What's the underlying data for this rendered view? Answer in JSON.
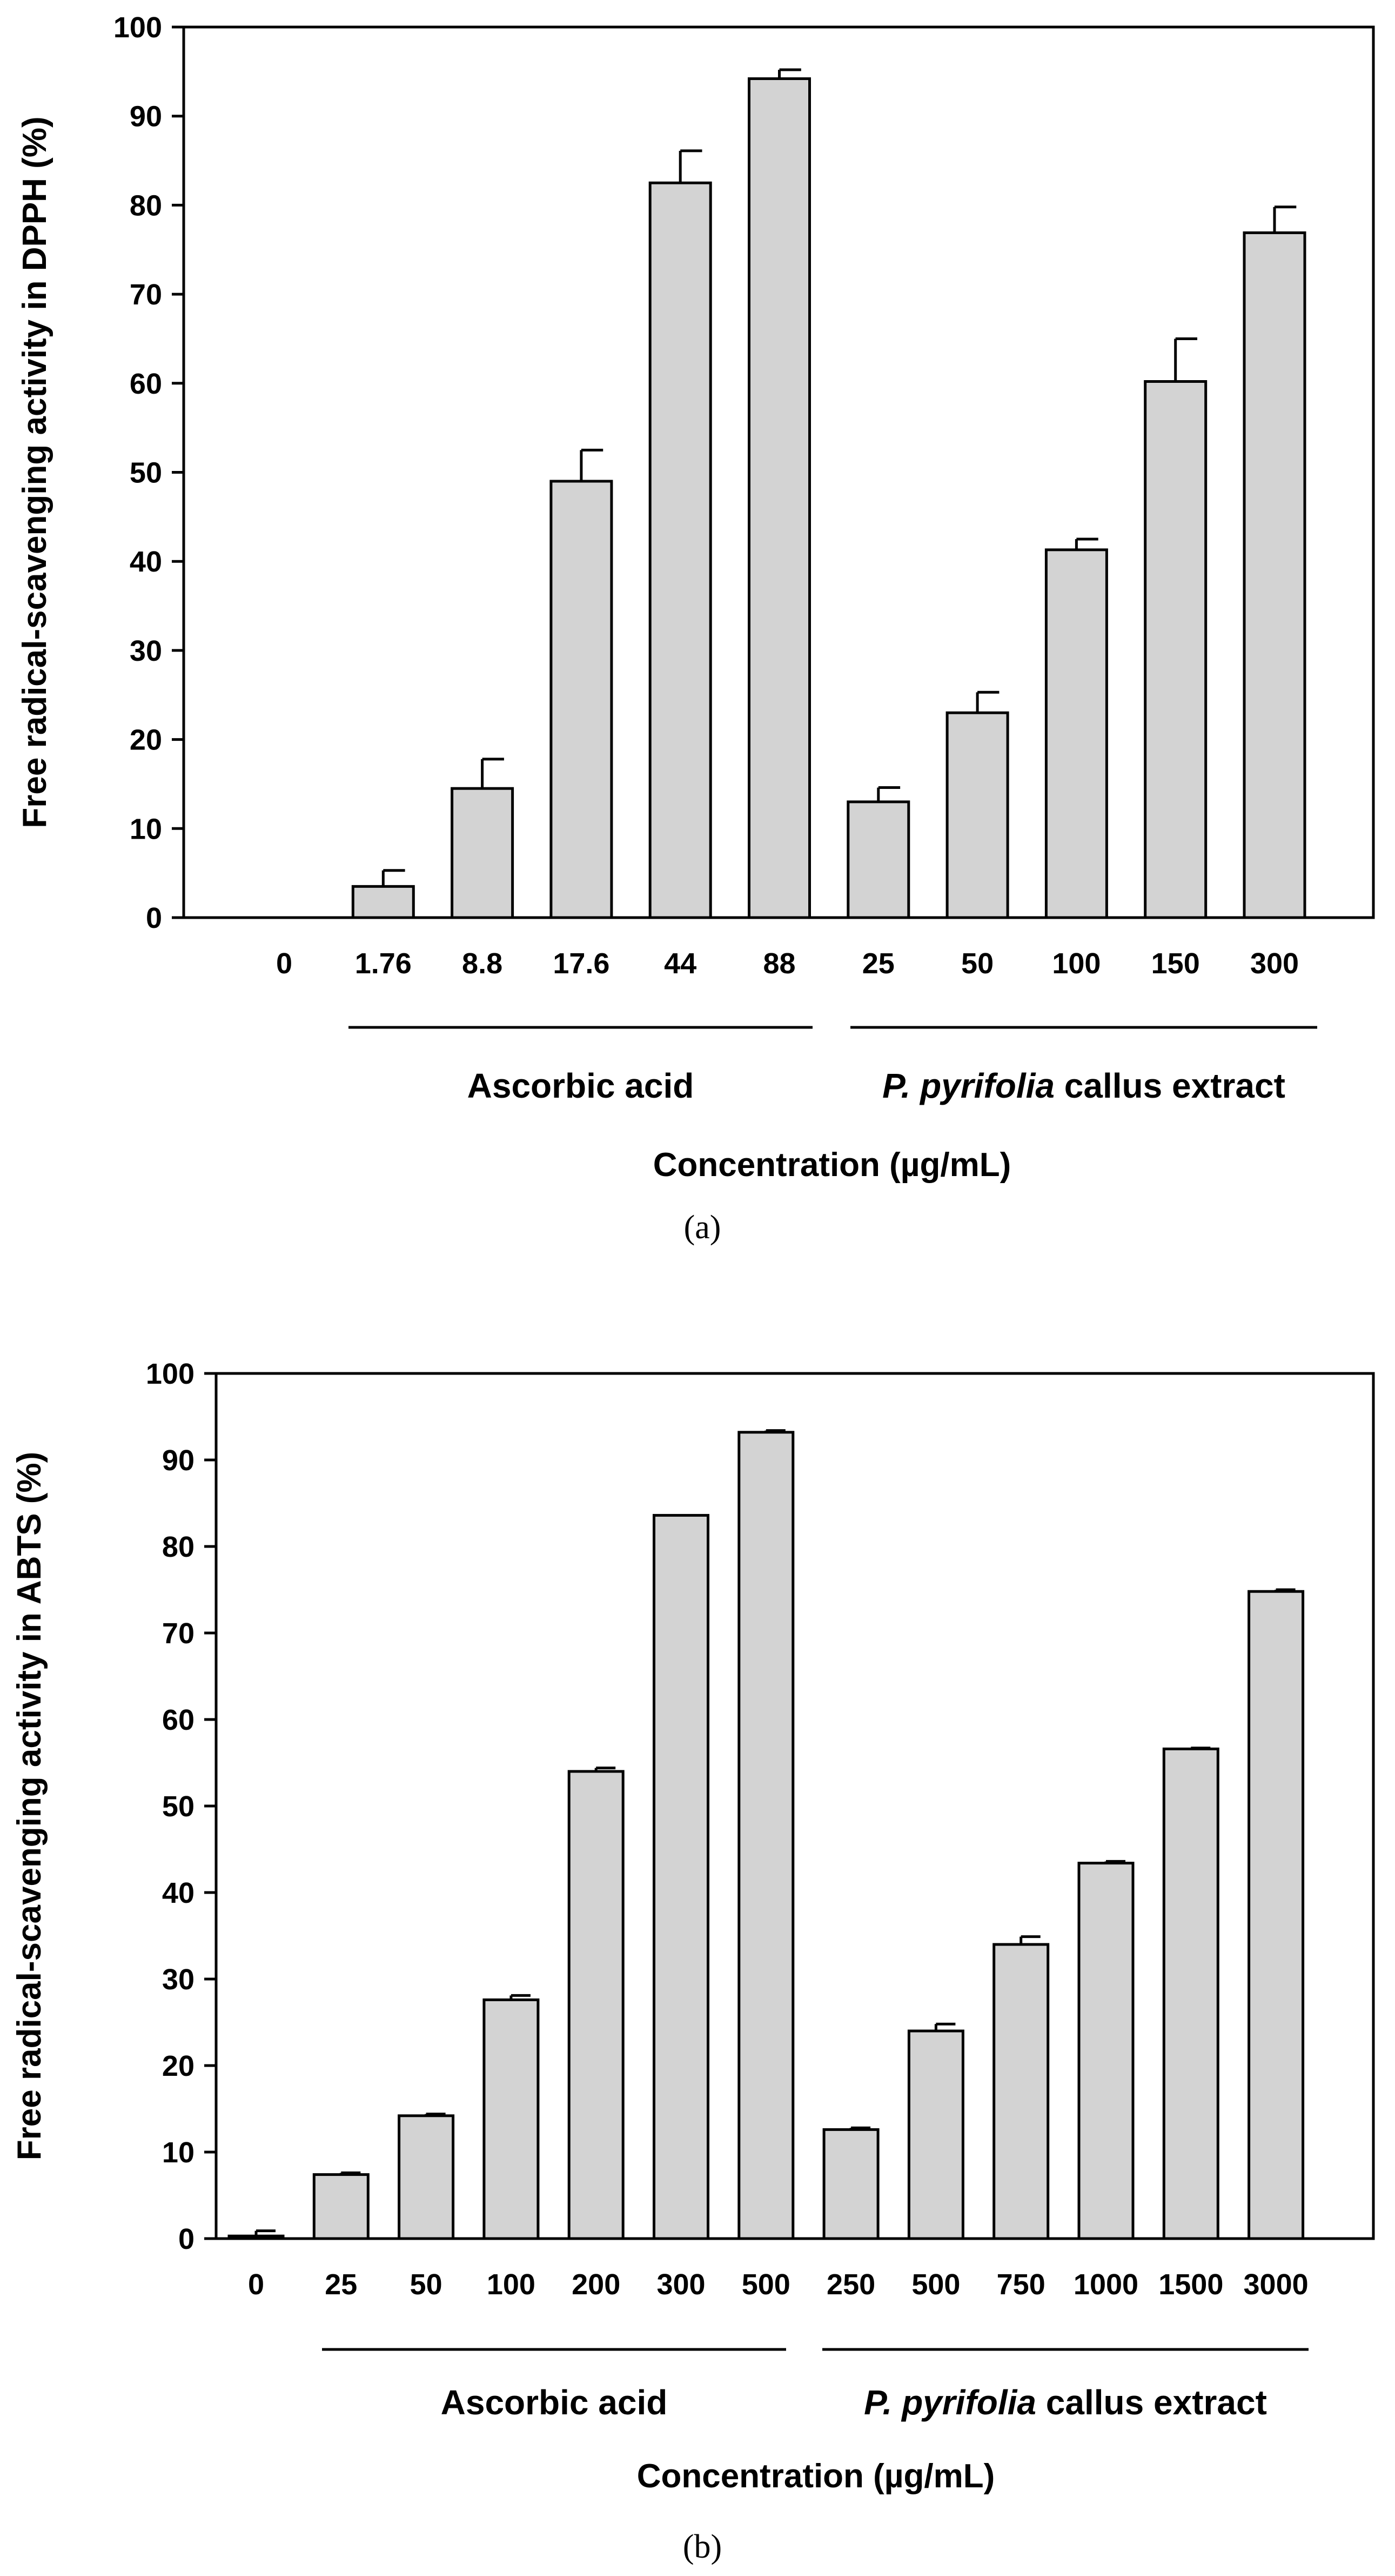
{
  "chart_data": [
    {
      "type": "bar",
      "panel_label": "(a)",
      "ylabel": "Free radical-scavenging activity in DPPH (%)",
      "xlabel": "Concentration (µg/mL)",
      "ylim": [
        0,
        100
      ],
      "yticks": [
        "0",
        "10",
        "20",
        "30",
        "40",
        "50",
        "60",
        "70",
        "80",
        "90",
        "100"
      ],
      "categories": [
        "0",
        "1.76",
        "8.8",
        "17.6",
        "44",
        "88",
        "25",
        "50",
        "100",
        "150",
        "300"
      ],
      "values": [
        0,
        3.5,
        14.5,
        49,
        82.5,
        94.2,
        13,
        23,
        41.3,
        60.2,
        76.9
      ],
      "errors": [
        0,
        1.8,
        3.3,
        3.5,
        3.6,
        1,
        1.6,
        2.3,
        1.2,
        4.8,
        2.9
      ],
      "groups": [
        {
          "label": "Ascorbic acid",
          "start": 1,
          "end": 5
        },
        {
          "label_italic": "P. pyrifolia",
          "label_rest": " callus extract",
          "start": 6,
          "end": 10
        }
      ]
    },
    {
      "type": "bar",
      "panel_label": "(b)",
      "ylabel": "Free radical-scavenging activity in ABTS (%)",
      "xlabel": "Concentration (µg/mL)",
      "ylim": [
        0,
        100
      ],
      "yticks": [
        "0",
        "10",
        "20",
        "30",
        "40",
        "50",
        "60",
        "70",
        "80",
        "90",
        "100"
      ],
      "categories": [
        "0",
        "25",
        "50",
        "100",
        "200",
        "300",
        "500",
        "250",
        "500",
        "750",
        "1000",
        "1500",
        "3000"
      ],
      "values": [
        0.3,
        7.4,
        14.2,
        27.6,
        54,
        83.6,
        93.2,
        12.6,
        24,
        34,
        43.4,
        56.6,
        74.8
      ],
      "errors": [
        0.6,
        0.2,
        0.2,
        0.5,
        0.4,
        0,
        0.2,
        0.2,
        0.8,
        0.9,
        0.2,
        0.1,
        0.2
      ],
      "groups": [
        {
          "label": "Ascorbic acid",
          "start": 1,
          "end": 6
        },
        {
          "label_italic": "P. pyrifolia",
          "label_rest": " callus extract",
          "start": 7,
          "end": 12
        }
      ]
    }
  ]
}
